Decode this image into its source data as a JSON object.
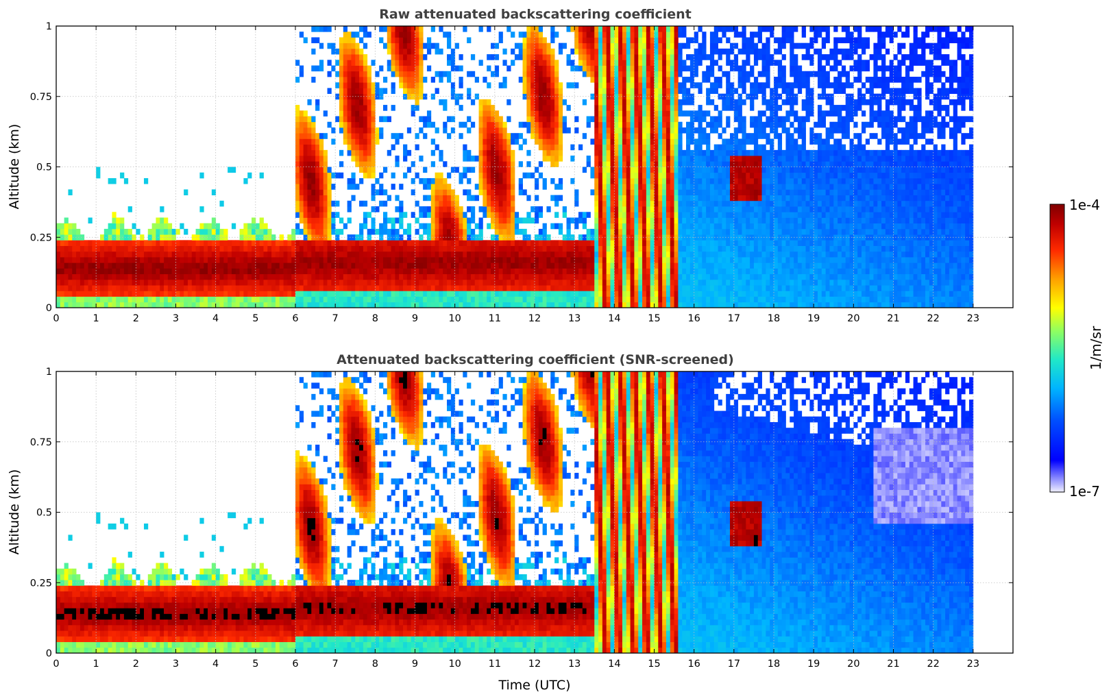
{
  "chart_data": [
    {
      "type": "heatmap",
      "title": "Raw attenuated backscattering coefficient",
      "xlabel": "",
      "ylabel": "Altitude (km)",
      "xlim": [
        0,
        24
      ],
      "ylim": [
        0,
        1
      ],
      "x_ticks": [
        "0",
        "1",
        "2",
        "3",
        "4",
        "5",
        "6",
        "7",
        "8",
        "9",
        "10",
        "11",
        "12",
        "13",
        "14",
        "15",
        "16",
        "17",
        "18",
        "19",
        "20",
        "21",
        "22",
        "23"
      ],
      "y_ticks": [
        "0",
        "0.25",
        "0.5",
        "0.75",
        "1"
      ],
      "grid": true,
      "data_end_hour": 23,
      "screened": false
    },
    {
      "type": "heatmap",
      "title": "Attenuated backscattering coefficient (SNR-screened)",
      "xlabel": "Time (UTC)",
      "ylabel": "Altitude (km)",
      "xlim": [
        0,
        24
      ],
      "ylim": [
        0,
        1
      ],
      "x_ticks": [
        "0",
        "1",
        "2",
        "3",
        "4",
        "5",
        "6",
        "7",
        "8",
        "9",
        "10",
        "11",
        "12",
        "13",
        "14",
        "15",
        "16",
        "17",
        "18",
        "19",
        "20",
        "21",
        "22",
        "23"
      ],
      "y_ticks": [
        "0",
        "0.25",
        "0.5",
        "0.75",
        "1"
      ],
      "grid": true,
      "data_end_hour": 23,
      "screened": true
    }
  ],
  "colorbar": {
    "max_label": "1e-4",
    "min_label": "1e-7",
    "unit_label": "1/m/sr",
    "colormap": "jet"
  }
}
